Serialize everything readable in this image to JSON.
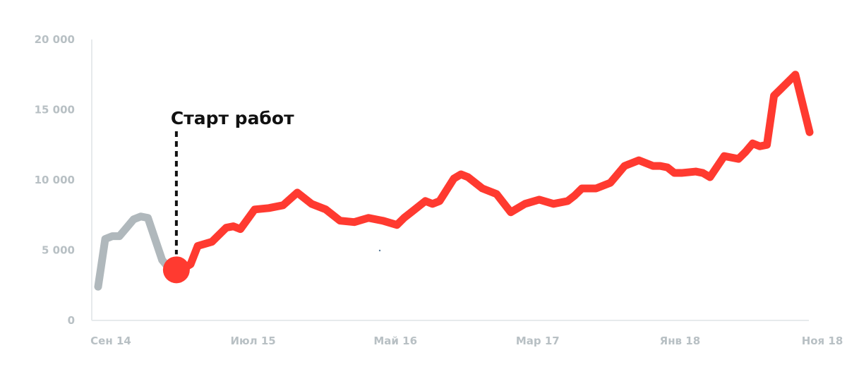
{
  "chart_data": {
    "type": "line",
    "title": "",
    "xlabel": "",
    "ylabel": "",
    "ylim": [
      0,
      20000
    ],
    "yticks": [
      {
        "value": 0,
        "label": "0"
      },
      {
        "value": 5000,
        "label": "5 000"
      },
      {
        "value": 10000,
        "label": "10 000"
      },
      {
        "value": 15000,
        "label": "15 000"
      },
      {
        "value": 20000,
        "label": "20 000"
      }
    ],
    "xticks": [
      {
        "index": 0,
        "label": "Сен 14"
      },
      {
        "index": 10,
        "label": "Июл 15"
      },
      {
        "index": 20,
        "label": "Май 16"
      },
      {
        "index": 30,
        "label": "Мар 17"
      },
      {
        "index": 40,
        "label": "Янв 18"
      },
      {
        "index": 50,
        "label": "Ноя 18"
      }
    ],
    "series": [
      {
        "color": "#b0b8bc",
        "x": [
          0,
          0.5,
          1,
          1.5,
          2,
          2.5,
          3,
          3.5,
          4,
          4.5,
          5,
          5.5
        ],
        "values": [
          2400,
          5800,
          6000,
          6000,
          6600,
          7200,
          7400,
          7300,
          5800,
          4300,
          3700,
          3600
        ]
      },
      {
        "color": "#ff3a30",
        "x": [
          5.5,
          6,
          6.5,
          7,
          8,
          9,
          9.5,
          10,
          11,
          12,
          13,
          14,
          15,
          16,
          17,
          18,
          19,
          20,
          21,
          21.5,
          22,
          23,
          23.5,
          24,
          25,
          25.5,
          26,
          27,
          28,
          29,
          30,
          31,
          32,
          33,
          33.5,
          34,
          35,
          36,
          37,
          38,
          39,
          39.5,
          40,
          40.5,
          41,
          42,
          42.5,
          43,
          44,
          45,
          45.5,
          46,
          46.5,
          47,
          47.5,
          48,
          49,
          50
        ],
        "values": [
          3600,
          3700,
          4000,
          5300,
          5600,
          6600,
          6700,
          6500,
          7900,
          8000,
          8200,
          9100,
          8300,
          7900,
          7100,
          7000,
          7300,
          7100,
          6800,
          7300,
          7700,
          8500,
          8300,
          8500,
          10100,
          10400,
          10200,
          9400,
          9000,
          7700,
          8300,
          8600,
          8300,
          8500,
          8900,
          9400,
          9400,
          9800,
          11000,
          11400,
          11000,
          11000,
          10900,
          10500,
          10500,
          10600,
          10500,
          10200,
          11700,
          11500,
          12000,
          12600,
          12400,
          12500,
          16000,
          16500,
          17500,
          13400
        ]
      }
    ],
    "annotation": {
      "label": "Старт работ",
      "x": 5.5,
      "value": 3600
    }
  }
}
